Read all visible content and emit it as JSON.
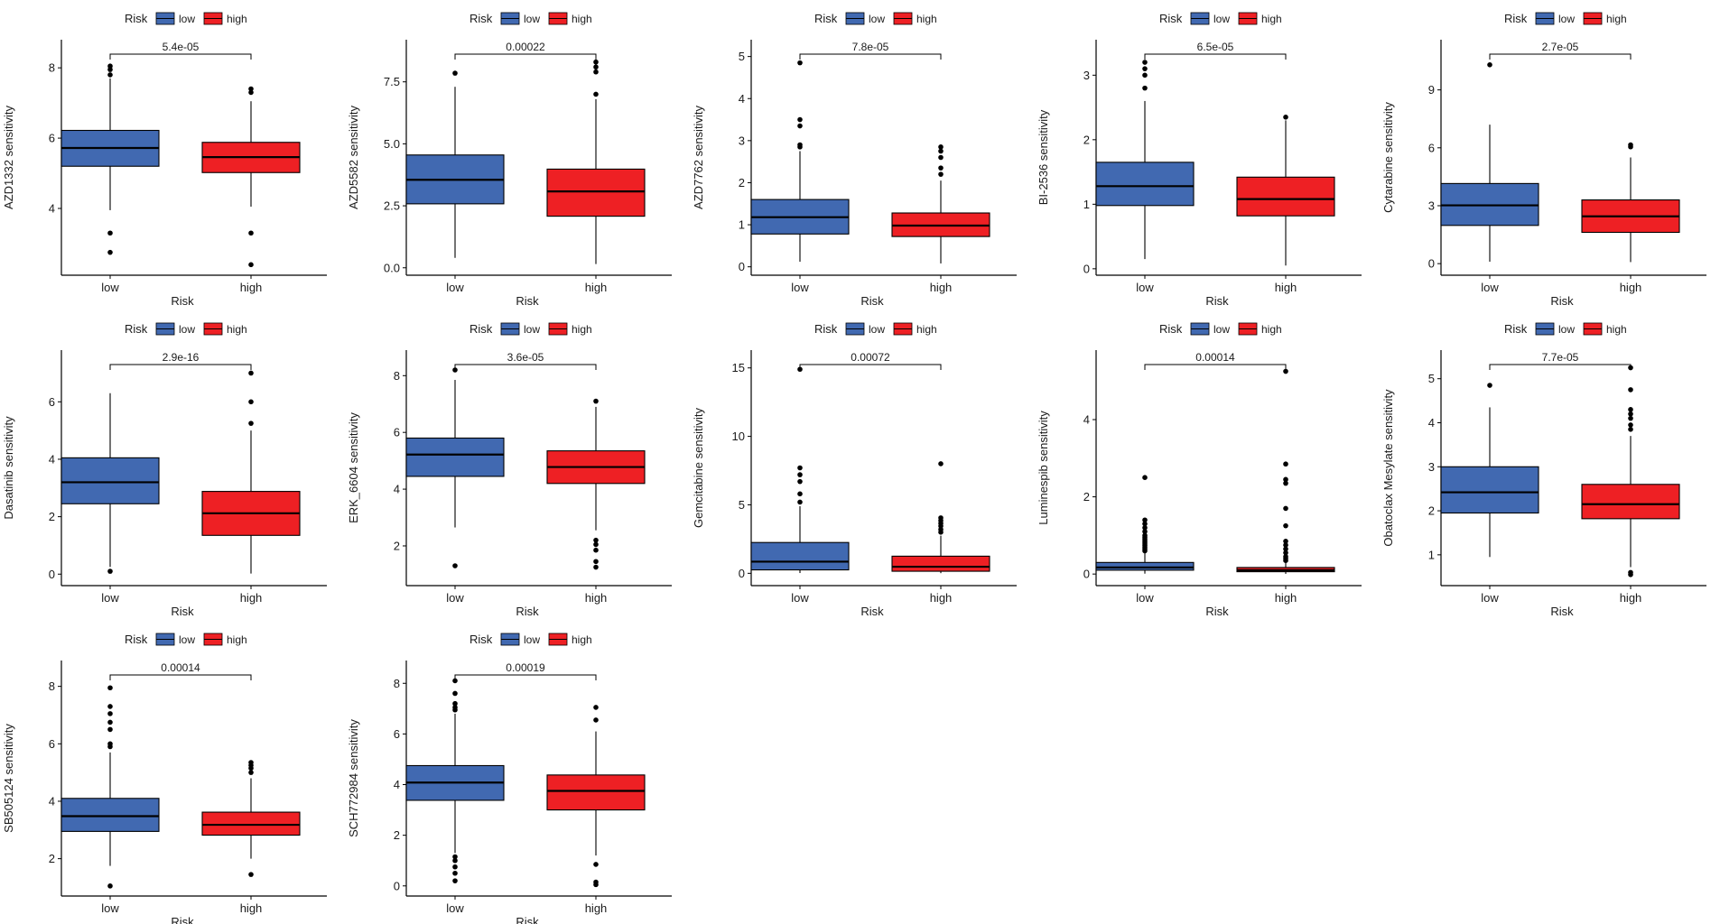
{
  "figure": {
    "colors": {
      "low": "#4169B1",
      "high": "#EE2024",
      "axis": "#000000",
      "text": "#1a1a1a"
    }
  },
  "chart_data": [
    {
      "type": "box",
      "title": "",
      "legend": {
        "title": "Risk",
        "entries": [
          "low",
          "high"
        ],
        "position": "top"
      },
      "xlabel": "Risk",
      "ylabel": "AZD1332 sensitivity",
      "categories": [
        "low",
        "high"
      ],
      "pvalue": "5.4e-05",
      "ylim": [
        2.1,
        8.8
      ],
      "yticks": [
        4,
        6,
        8
      ],
      "groups": [
        {
          "name": "low",
          "q1": 5.2,
          "median": 5.72,
          "q3": 6.22,
          "whisker_low": 3.95,
          "whisker_high": 7.7,
          "outliers": [
            8.05,
            7.95,
            7.8,
            3.3,
            2.75
          ]
        },
        {
          "name": "high",
          "q1": 5.02,
          "median": 5.46,
          "q3": 5.88,
          "whisker_low": 4.05,
          "whisker_high": 7.05,
          "outliers": [
            7.4,
            7.3,
            3.3,
            2.4
          ]
        }
      ]
    },
    {
      "type": "box",
      "title": "",
      "legend": {
        "title": "Risk",
        "entries": [
          "low",
          "high"
        ],
        "position": "top"
      },
      "xlabel": "Risk",
      "ylabel": "AZD5582 sensitivity",
      "categories": [
        "low",
        "high"
      ],
      "pvalue": "0.00022",
      "ylim": [
        -0.3,
        9.2
      ],
      "yticks": [
        0.0,
        2.5,
        5.0,
        7.5
      ],
      "groups": [
        {
          "name": "low",
          "q1": 2.58,
          "median": 3.55,
          "q3": 4.55,
          "whisker_low": 0.4,
          "whisker_high": 7.3,
          "outliers": [
            7.85
          ]
        },
        {
          "name": "high",
          "q1": 2.08,
          "median": 3.08,
          "q3": 3.98,
          "whisker_low": 0.15,
          "whisker_high": 6.8,
          "outliers": [
            8.3,
            8.1,
            7.9,
            7.0
          ]
        }
      ]
    },
    {
      "type": "box",
      "title": "",
      "legend": {
        "title": "Risk",
        "entries": [
          "low",
          "high"
        ],
        "position": "top"
      },
      "xlabel": "Risk",
      "ylabel": "AZD7762 sensitivity",
      "categories": [
        "low",
        "high"
      ],
      "pvalue": "7.8e-05",
      "ylim": [
        -0.2,
        5.4
      ],
      "yticks": [
        0,
        1,
        2,
        3,
        4,
        5
      ],
      "groups": [
        {
          "name": "low",
          "q1": 0.78,
          "median": 1.18,
          "q3": 1.6,
          "whisker_low": 0.12,
          "whisker_high": 2.75,
          "outliers": [
            4.85,
            3.5,
            3.35,
            2.9,
            2.85
          ]
        },
        {
          "name": "high",
          "q1": 0.72,
          "median": 0.98,
          "q3": 1.28,
          "whisker_low": 0.08,
          "whisker_high": 2.05,
          "outliers": [
            2.85,
            2.75,
            2.6,
            2.35,
            2.2
          ]
        }
      ]
    },
    {
      "type": "box",
      "title": "",
      "legend": {
        "title": "Risk",
        "entries": [
          "low",
          "high"
        ],
        "position": "top"
      },
      "xlabel": "Risk",
      "ylabel": "BI-2536 sensitivity",
      "categories": [
        "low",
        "high"
      ],
      "pvalue": "6.5e-05",
      "ylim": [
        -0.1,
        3.55
      ],
      "yticks": [
        0,
        1,
        2,
        3
      ],
      "groups": [
        {
          "name": "low",
          "q1": 0.98,
          "median": 1.28,
          "q3": 1.65,
          "whisker_low": 0.15,
          "whisker_high": 2.6,
          "outliers": [
            3.2,
            3.1,
            3.0,
            2.8
          ]
        },
        {
          "name": "high",
          "q1": 0.82,
          "median": 1.08,
          "q3": 1.42,
          "whisker_low": 0.05,
          "whisker_high": 2.3,
          "outliers": [
            2.35
          ]
        }
      ]
    },
    {
      "type": "box",
      "title": "",
      "legend": {
        "title": "Risk",
        "entries": [
          "low",
          "high"
        ],
        "position": "top"
      },
      "xlabel": "Risk",
      "ylabel": "Cytarabine sensitivity",
      "categories": [
        "low",
        "high"
      ],
      "pvalue": "2.7e-05",
      "ylim": [
        -0.6,
        11.6
      ],
      "yticks": [
        0,
        3,
        6,
        9
      ],
      "groups": [
        {
          "name": "low",
          "q1": 1.98,
          "median": 3.02,
          "q3": 4.15,
          "whisker_low": 0.1,
          "whisker_high": 7.2,
          "outliers": [
            10.3
          ]
        },
        {
          "name": "high",
          "q1": 1.62,
          "median": 2.45,
          "q3": 3.3,
          "whisker_low": 0.08,
          "whisker_high": 5.5,
          "outliers": [
            6.15,
            6.05
          ]
        }
      ]
    },
    {
      "type": "box",
      "title": "",
      "legend": {
        "title": "Risk",
        "entries": [
          "low",
          "high"
        ],
        "position": "top"
      },
      "xlabel": "Risk",
      "ylabel": "Dasatinib sensitivity",
      "categories": [
        "low",
        "high"
      ],
      "pvalue": "2.9e-16",
      "ylim": [
        -0.4,
        7.8
      ],
      "yticks": [
        0,
        2,
        4,
        6
      ],
      "groups": [
        {
          "name": "low",
          "q1": 2.45,
          "median": 3.2,
          "q3": 4.05,
          "whisker_low": 0.25,
          "whisker_high": 6.3,
          "outliers": [
            0.1
          ]
        },
        {
          "name": "high",
          "q1": 1.35,
          "median": 2.12,
          "q3": 2.88,
          "whisker_low": 0.02,
          "whisker_high": 5.0,
          "outliers": [
            7.0,
            6.0,
            5.25
          ]
        }
      ]
    },
    {
      "type": "box",
      "title": "",
      "legend": {
        "title": "Risk",
        "entries": [
          "low",
          "high"
        ],
        "position": "top"
      },
      "xlabel": "Risk",
      "ylabel": "ERK_6604 sensitivity",
      "categories": [
        "low",
        "high"
      ],
      "pvalue": "3.6e-05",
      "ylim": [
        0.6,
        8.9
      ],
      "yticks": [
        2,
        4,
        6,
        8
      ],
      "groups": [
        {
          "name": "low",
          "q1": 4.45,
          "median": 5.22,
          "q3": 5.8,
          "whisker_low": 2.65,
          "whisker_high": 7.85,
          "outliers": [
            8.2,
            1.3
          ]
        },
        {
          "name": "high",
          "q1": 4.2,
          "median": 4.78,
          "q3": 5.35,
          "whisker_low": 2.55,
          "whisker_high": 6.9,
          "outliers": [
            7.1,
            2.2,
            2.05,
            1.85,
            1.45,
            1.25
          ]
        }
      ]
    },
    {
      "type": "box",
      "title": "",
      "legend": {
        "title": "Risk",
        "entries": [
          "low",
          "high"
        ],
        "position": "top"
      },
      "xlabel": "Risk",
      "ylabel": "Gemcitabine sensitivity",
      "categories": [
        "low",
        "high"
      ],
      "pvalue": "0.00072",
      "ylim": [
        -0.9,
        16.3
      ],
      "yticks": [
        0,
        5,
        10,
        15
      ],
      "groups": [
        {
          "name": "low",
          "q1": 0.25,
          "median": 0.85,
          "q3": 2.25,
          "whisker_low": 0.02,
          "whisker_high": 4.9,
          "outliers": [
            14.9,
            7.7,
            7.2,
            6.7,
            5.8,
            5.2
          ]
        },
        {
          "name": "high",
          "q1": 0.15,
          "median": 0.48,
          "q3": 1.25,
          "whisker_low": 0.01,
          "whisker_high": 2.75,
          "outliers": [
            8.0,
            4.05,
            3.85,
            3.65,
            3.45,
            3.2,
            3.0
          ]
        }
      ]
    },
    {
      "type": "box",
      "title": "",
      "legend": {
        "title": "Risk",
        "entries": [
          "low",
          "high"
        ],
        "position": "top"
      },
      "xlabel": "Risk",
      "ylabel": "Luminespib sensitivity",
      "categories": [
        "low",
        "high"
      ],
      "pvalue": "0.00014",
      "ylim": [
        -0.3,
        5.8
      ],
      "yticks": [
        0,
        2,
        4
      ],
      "groups": [
        {
          "name": "low",
          "q1": 0.1,
          "median": 0.17,
          "q3": 0.3,
          "whisker_low": 0.01,
          "whisker_high": 0.55,
          "outliers": [
            2.5,
            1.4,
            1.3,
            1.2,
            1.1,
            1.0,
            0.95,
            0.9,
            0.85,
            0.8,
            0.75,
            0.7,
            0.65,
            0.6
          ]
        },
        {
          "name": "high",
          "q1": 0.06,
          "median": 0.1,
          "q3": 0.17,
          "whisker_low": 0.005,
          "whisker_high": 0.3,
          "outliers": [
            5.25,
            2.85,
            2.45,
            2.35,
            1.7,
            1.25,
            0.85,
            0.75,
            0.65,
            0.55,
            0.45,
            0.4,
            0.35
          ]
        }
      ]
    },
    {
      "type": "box",
      "title": "",
      "legend": {
        "title": "Risk",
        "entries": [
          "low",
          "high"
        ],
        "position": "top"
      },
      "xlabel": "Risk",
      "ylabel": "Obatoclax Mesylate sensitivity",
      "categories": [
        "low",
        "high"
      ],
      "pvalue": "7.7e-05",
      "ylim": [
        0.3,
        5.65
      ],
      "yticks": [
        1,
        2,
        3,
        4,
        5
      ],
      "groups": [
        {
          "name": "low",
          "q1": 1.95,
          "median": 2.42,
          "q3": 3.0,
          "whisker_low": 0.95,
          "whisker_high": 4.35,
          "outliers": [
            4.85
          ]
        },
        {
          "name": "high",
          "q1": 1.82,
          "median": 2.15,
          "q3": 2.6,
          "whisker_low": 0.72,
          "whisker_high": 3.7,
          "outliers": [
            5.25,
            4.75,
            4.3,
            4.2,
            4.1,
            3.95,
            3.85,
            0.6,
            0.55
          ]
        }
      ]
    },
    {
      "type": "box",
      "title": "",
      "legend": {
        "title": "Risk",
        "entries": [
          "low",
          "high"
        ],
        "position": "top"
      },
      "xlabel": "Risk",
      "ylabel": "SB505124 sensitivity",
      "categories": [
        "low",
        "high"
      ],
      "pvalue": "0.00014",
      "ylim": [
        0.7,
        8.9
      ],
      "yticks": [
        2,
        4,
        6,
        8
      ],
      "groups": [
        {
          "name": "low",
          "q1": 2.95,
          "median": 3.48,
          "q3": 4.1,
          "whisker_low": 1.75,
          "whisker_high": 5.7,
          "outliers": [
            7.95,
            7.3,
            7.05,
            6.75,
            6.5,
            6.0,
            5.9,
            1.05
          ]
        },
        {
          "name": "high",
          "q1": 2.82,
          "median": 3.18,
          "q3": 3.62,
          "whisker_low": 2.0,
          "whisker_high": 4.8,
          "outliers": [
            5.35,
            5.25,
            5.15,
            5.0,
            1.45
          ]
        }
      ]
    },
    {
      "type": "box",
      "title": "",
      "legend": {
        "title": "Risk",
        "entries": [
          "low",
          "high"
        ],
        "position": "top"
      },
      "xlabel": "Risk",
      "ylabel": "SCH772984 sensitivity",
      "categories": [
        "low",
        "high"
      ],
      "pvalue": "0.00019",
      "ylim": [
        -0.4,
        8.9
      ],
      "yticks": [
        0,
        2,
        4,
        6,
        8
      ],
      "groups": [
        {
          "name": "low",
          "q1": 3.38,
          "median": 4.08,
          "q3": 4.75,
          "whisker_low": 1.3,
          "whisker_high": 6.8,
          "outliers": [
            8.1,
            7.6,
            7.2,
            7.05,
            6.95,
            1.15,
            1.0,
            0.75,
            0.5,
            0.2
          ]
        },
        {
          "name": "high",
          "q1": 3.0,
          "median": 3.75,
          "q3": 4.38,
          "whisker_low": 1.2,
          "whisker_high": 6.1,
          "outliers": [
            7.05,
            6.55,
            0.85,
            0.15,
            0.05
          ]
        }
      ]
    }
  ]
}
